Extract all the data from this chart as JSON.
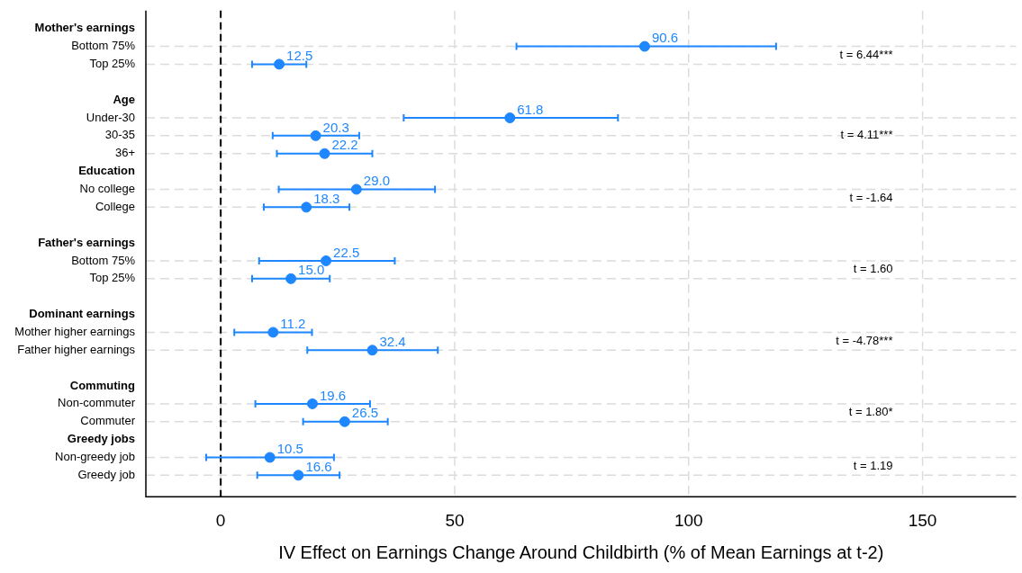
{
  "chart_data": {
    "type": "scatter",
    "orientation": "horizontal",
    "xlabel": "IV Effect on Earnings Change Around Childbirth (% of Mean Earnings at t-2)",
    "categories": [
      "Mother's earnings",
      "Bottom 75%",
      "Top 25%",
      null,
      "Age",
      "Under-30",
      "30-35",
      "36+",
      "Education",
      "No college",
      "College",
      null,
      "Father's earnings",
      "Bottom 75%",
      "Top 25%",
      null,
      "Dominant earnings",
      "Mother higher earnings",
      "Father higher earnings",
      null,
      "Commuting",
      "Non-commuter",
      "Commuter",
      "Greedy jobs",
      "Non-greedy job",
      "Greedy job"
    ],
    "values": [
      null,
      90.6,
      12.5,
      null,
      null,
      61.8,
      20.3,
      22.2,
      null,
      29.0,
      18.3,
      null,
      null,
      22.5,
      15.0,
      null,
      null,
      11.2,
      32.4,
      null,
      null,
      19.6,
      26.5,
      null,
      10.5,
      16.6
    ],
    "value_labels": [
      null,
      "90.6",
      "12.5",
      null,
      null,
      "61.8",
      "20.3",
      "22.2",
      null,
      "29.0",
      "18.3",
      null,
      null,
      "22.5",
      "15.0",
      null,
      null,
      "11.2",
      "32.4",
      null,
      null,
      "19.6",
      "26.5",
      null,
      "10.5",
      "16.6"
    ],
    "errors": [
      null,
      [
        63.2,
        118.7
      ],
      [
        6.7,
        18.3
      ],
      null,
      null,
      [
        39.1,
        84.9
      ],
      [
        11.1,
        29.6
      ],
      [
        12.0,
        32.4
      ],
      null,
      [
        12.4,
        45.8
      ],
      [
        9.2,
        27.5
      ],
      null,
      null,
      [
        8.2,
        37.2
      ],
      [
        6.7,
        23.3
      ],
      null,
      null,
      [
        2.9,
        19.5
      ],
      [
        18.5,
        46.4
      ],
      null,
      null,
      [
        7.4,
        31.9
      ],
      [
        17.6,
        35.7
      ],
      null,
      [
        -3.1,
        24.2
      ],
      [
        7.8,
        25.4
      ]
    ],
    "color": "#1e87ff",
    "marker": "circle",
    "xlim": [
      -16,
      170
    ],
    "xticks": [
      0,
      50,
      100,
      150
    ],
    "grid": true,
    "legend": false,
    "ref_lines": [
      {
        "axis": "x",
        "value": 0,
        "color": "#000000",
        "line_style": "dashed"
      }
    ],
    "annotations": [
      "t = 6.44***",
      "t = 4.11***",
      "t = -1.64",
      "t = 1.60",
      "t = -4.78***",
      "t = 1.80*",
      "t = 1.19"
    ]
  }
}
